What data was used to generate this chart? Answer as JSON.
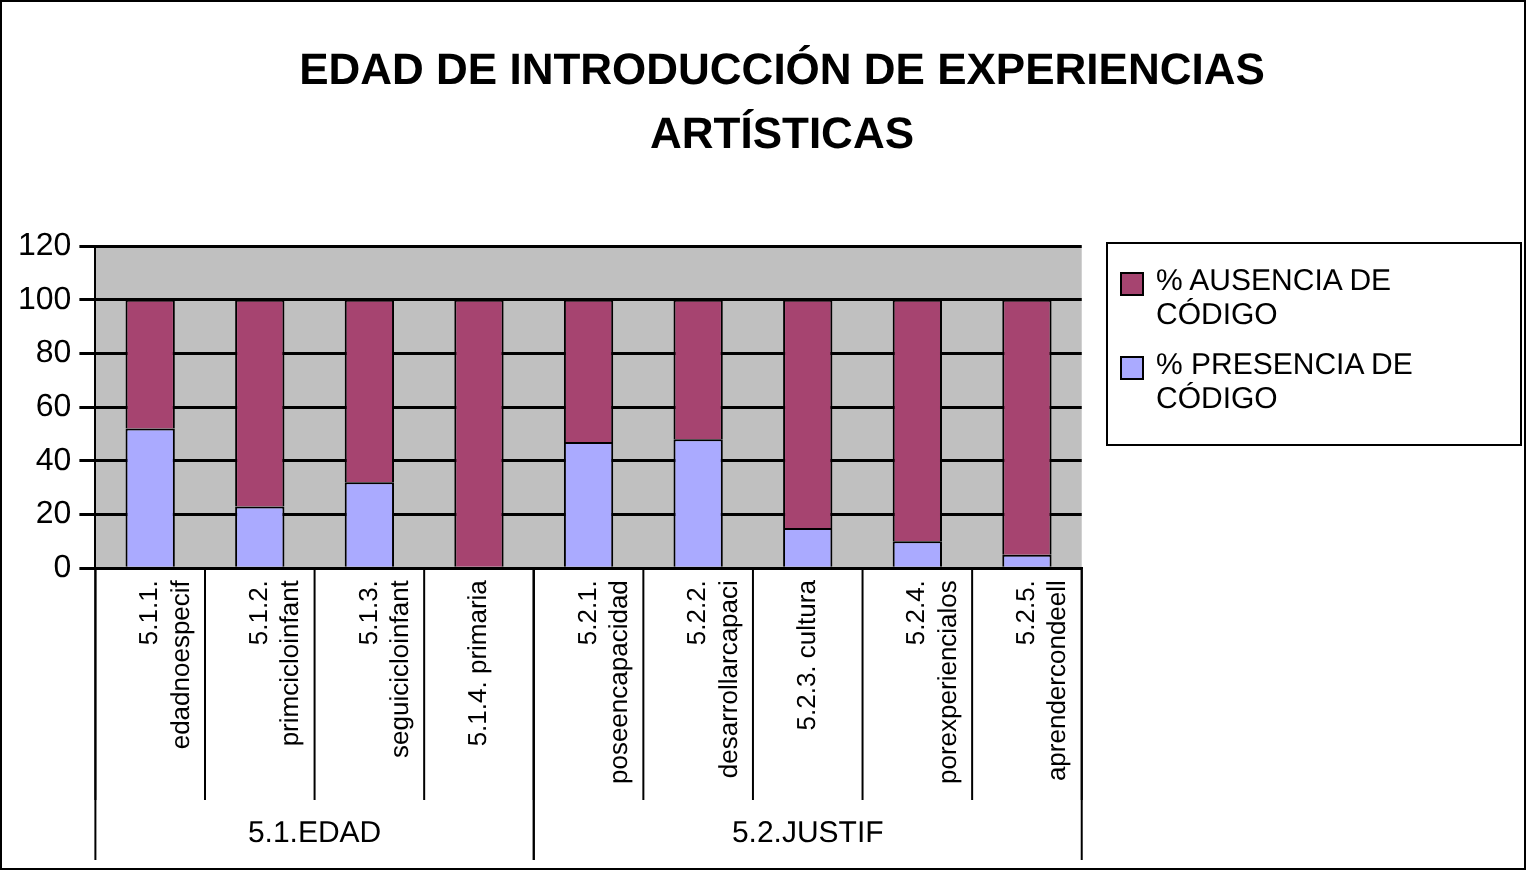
{
  "chart_data": {
    "type": "bar",
    "title": "EDAD DE INTRODUCCIÓN DE EXPERIENCIAS ARTÍSTICAS",
    "categories": [
      "5.1.1. edadnoespecif",
      "5.1.2. primcicloinfant",
      "5.1.3. seguicicloinfant",
      "5.1.4. primaria",
      "5.2.1. poseencapacidad",
      "5.2.2. desarrollarcapaci",
      "5.2.3. cultura",
      "5.2.4. porexperiencialos",
      "5.2.5. aprendercondeell"
    ],
    "series": [
      {
        "name": "% PRESENCIA DE CÓDIGO",
        "color": "#aaaaff",
        "values": [
          52,
          23,
          32,
          0,
          47,
          48,
          15,
          10,
          5
        ]
      },
      {
        "name": "% AUSENCIA DE CÓDIGO",
        "color": "#a64470",
        "values": [
          48,
          77,
          68,
          100,
          53,
          52,
          85,
          90,
          95
        ]
      }
    ],
    "stacked": true,
    "ylim": [
      0,
      120
    ],
    "yticks": [
      0,
      20,
      40,
      60,
      80,
      100,
      120
    ],
    "grid": "y",
    "legend": "right",
    "annotations": [
      "5.1.EDAD",
      "5.2.JUSTIF"
    ]
  }
}
